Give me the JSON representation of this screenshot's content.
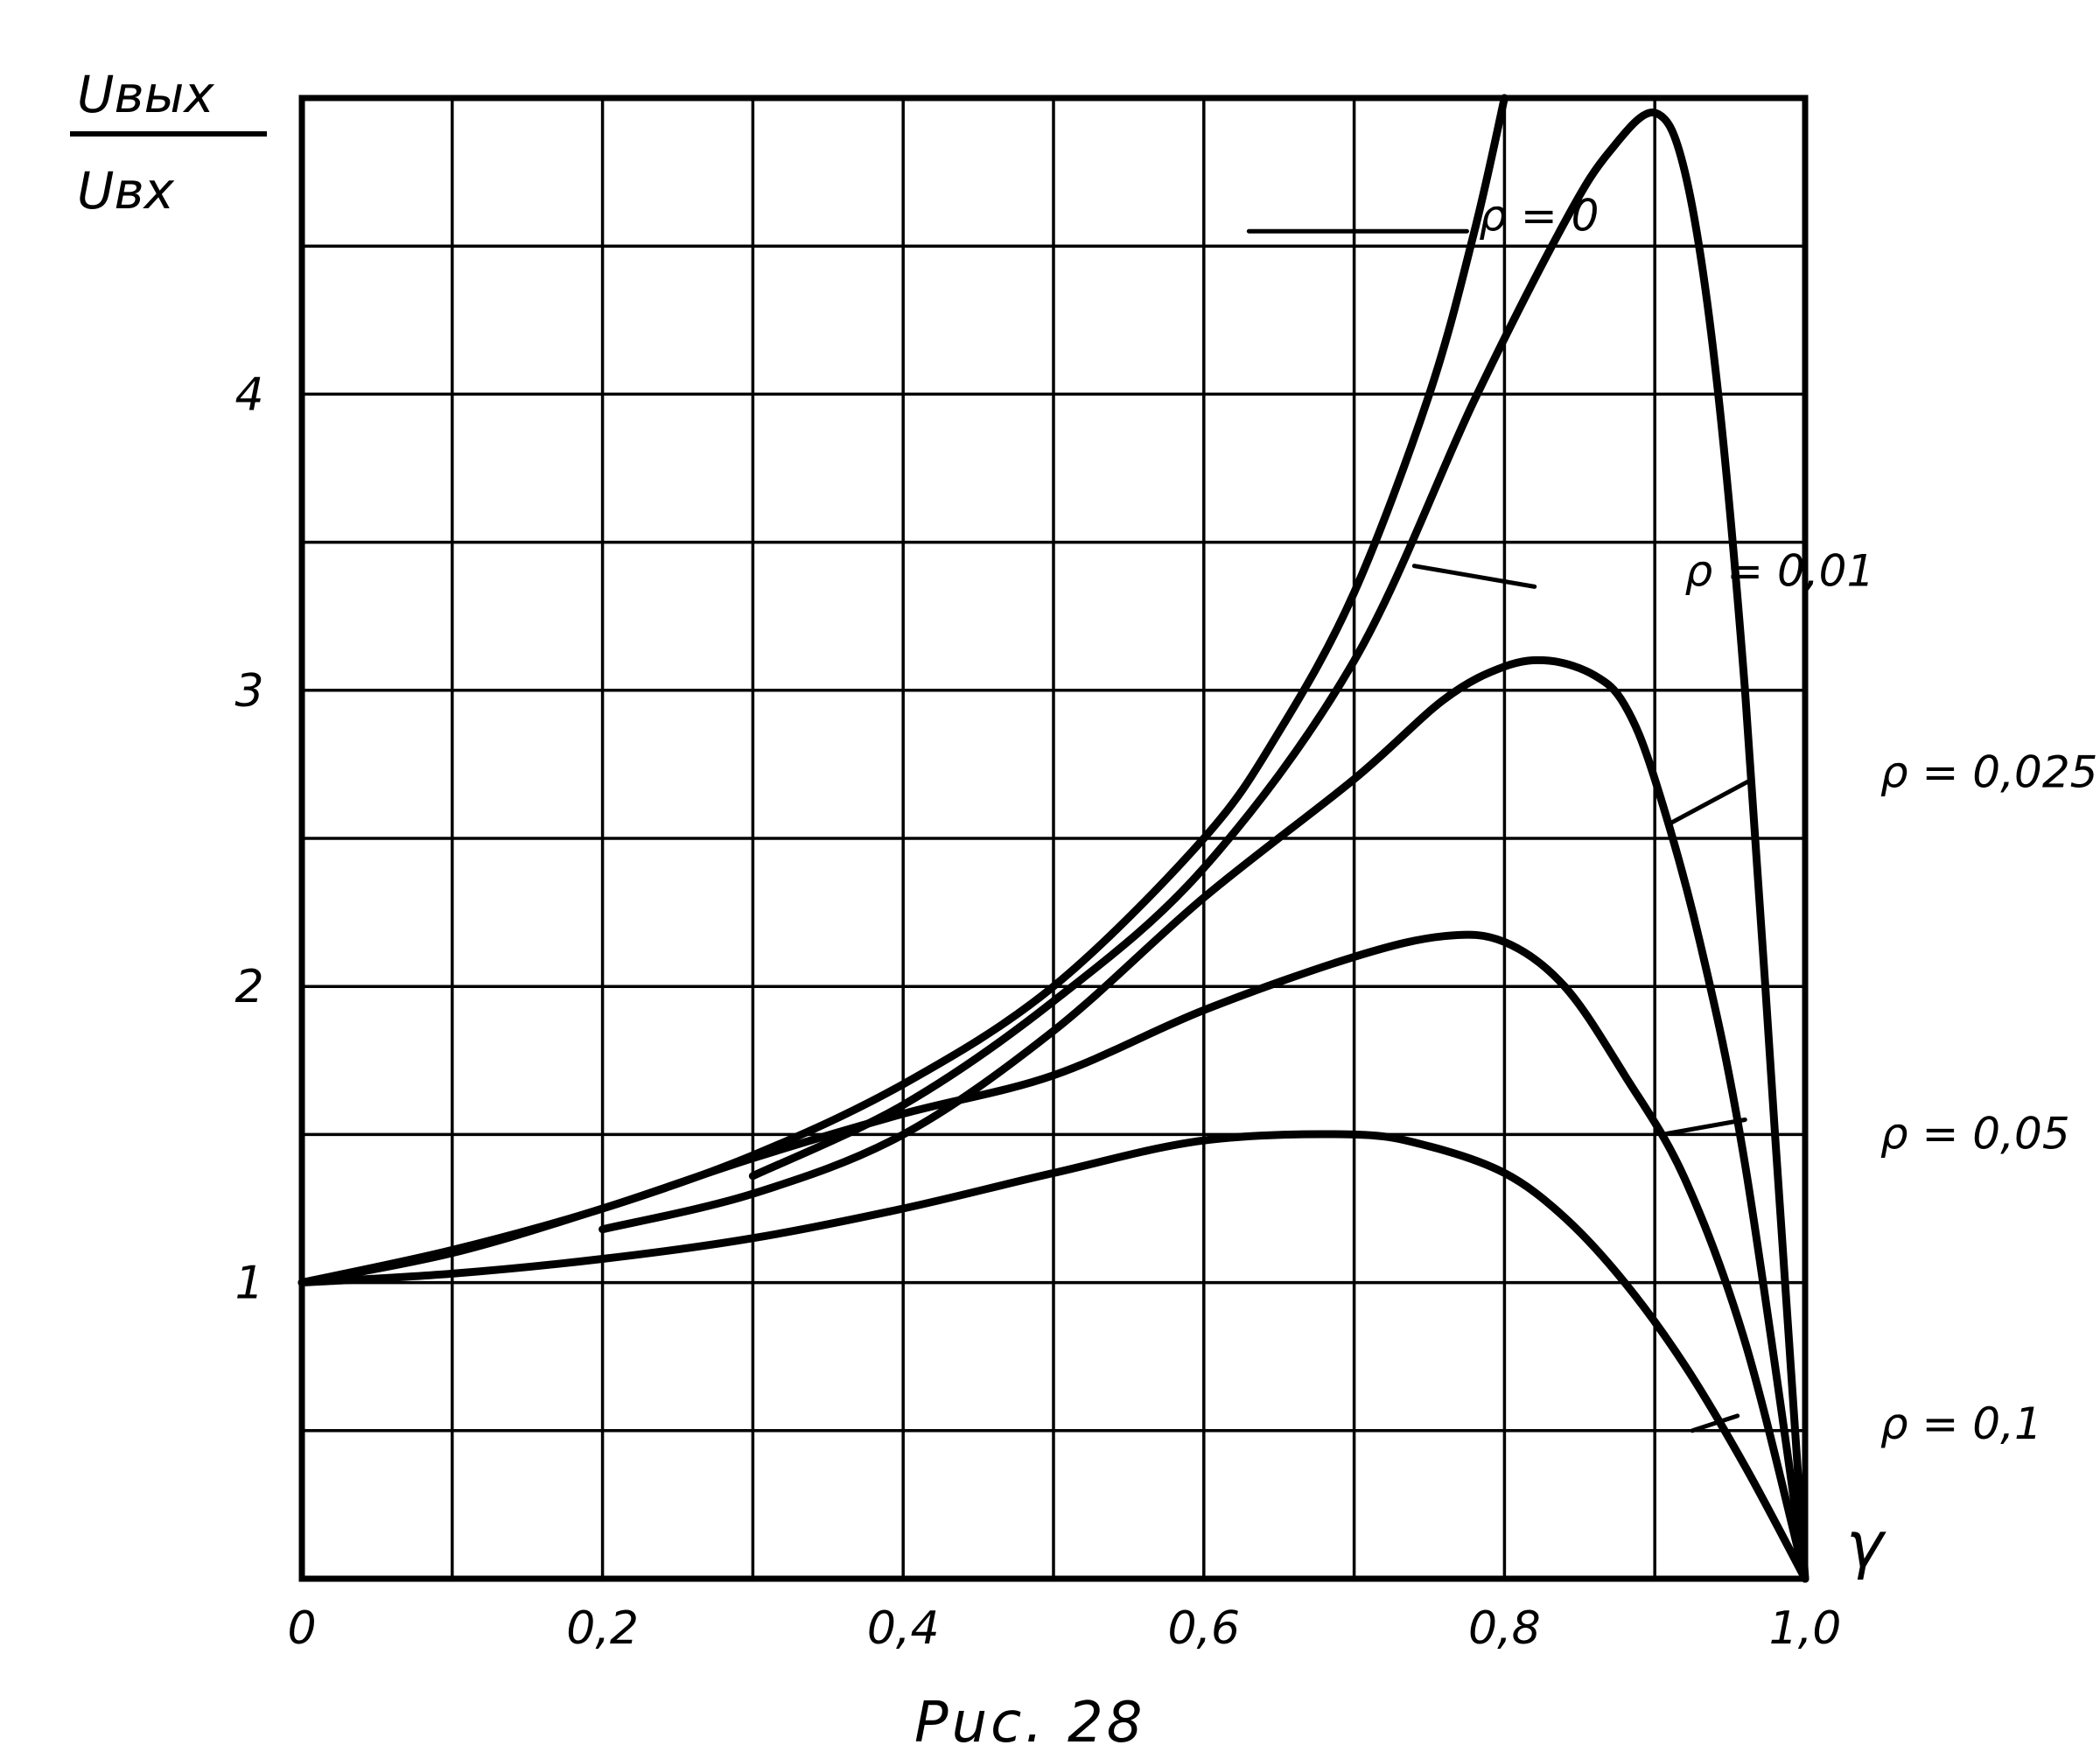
{
  "chart_data": {
    "type": "line",
    "title": "",
    "caption": "Puc. 28",
    "ylabel_numerator": "Uвых",
    "ylabel_denominator": "Uвх",
    "xlabel": "γ",
    "xlim": [
      0,
      1.0
    ],
    "ylim": [
      0,
      5
    ],
    "grid": true,
    "x_ticks": [
      {
        "value": 0,
        "label": "0"
      },
      {
        "value": 0.2,
        "label": "0,2"
      },
      {
        "value": 0.4,
        "label": "0,4"
      },
      {
        "value": 0.6,
        "label": "0,6"
      },
      {
        "value": 0.8,
        "label": "0,8"
      },
      {
        "value": 1.0,
        "label": "1,0"
      }
    ],
    "y_ticks": [
      {
        "value": 1,
        "label": "1"
      },
      {
        "value": 2,
        "label": "2"
      },
      {
        "value": 3,
        "label": "3"
      },
      {
        "value": 4,
        "label": "4"
      }
    ],
    "series": [
      {
        "name": "ρ = 0",
        "x": [
          0,
          0.1,
          0.2,
          0.3,
          0.4,
          0.5,
          0.6,
          0.65,
          0.7,
          0.75,
          0.78,
          0.8
        ],
        "y": [
          1.0,
          1.11,
          1.25,
          1.43,
          1.67,
          2.0,
          2.5,
          2.86,
          3.33,
          4.0,
          4.55,
          5.0
        ]
      },
      {
        "name": "ρ = 0,01",
        "x": [
          0.3,
          0.4,
          0.5,
          0.6,
          0.7,
          0.78,
          0.84,
          0.87,
          0.9,
          0.92,
          0.94,
          0.96,
          0.98,
          1.0
        ],
        "y": [
          1.36,
          1.6,
          1.95,
          2.4,
          3.1,
          3.98,
          4.58,
          4.82,
          4.95,
          4.75,
          4.1,
          3.0,
          1.5,
          0.0
        ]
      },
      {
        "name": "ρ = 0,025",
        "x": [
          0.2,
          0.3,
          0.4,
          0.5,
          0.6,
          0.7,
          0.76,
          0.8,
          0.83,
          0.86,
          0.88,
          0.9,
          0.93,
          0.96,
          1.0
        ],
        "y": [
          1.18,
          1.3,
          1.5,
          1.85,
          2.3,
          2.7,
          2.97,
          3.08,
          3.1,
          3.05,
          2.95,
          2.7,
          2.15,
          1.4,
          0.0
        ]
      },
      {
        "name": "ρ = 0,05",
        "x": [
          0,
          0.1,
          0.2,
          0.3,
          0.4,
          0.5,
          0.6,
          0.7,
          0.76,
          0.8,
          0.84,
          0.88,
          0.92,
          0.96,
          1.0
        ],
        "y": [
          1.0,
          1.1,
          1.25,
          1.42,
          1.57,
          1.7,
          1.92,
          2.1,
          2.17,
          2.15,
          2.0,
          1.7,
          1.35,
          0.8,
          0.0
        ]
      },
      {
        "name": "ρ = 0,1",
        "x": [
          0,
          0.1,
          0.2,
          0.3,
          0.4,
          0.5,
          0.6,
          0.7,
          0.75,
          0.8,
          0.84,
          0.88,
          0.92,
          0.96,
          1.0
        ],
        "y": [
          1.0,
          1.03,
          1.08,
          1.15,
          1.25,
          1.37,
          1.48,
          1.5,
          1.46,
          1.37,
          1.22,
          1.0,
          0.72,
          0.38,
          0.0
        ]
      }
    ]
  }
}
